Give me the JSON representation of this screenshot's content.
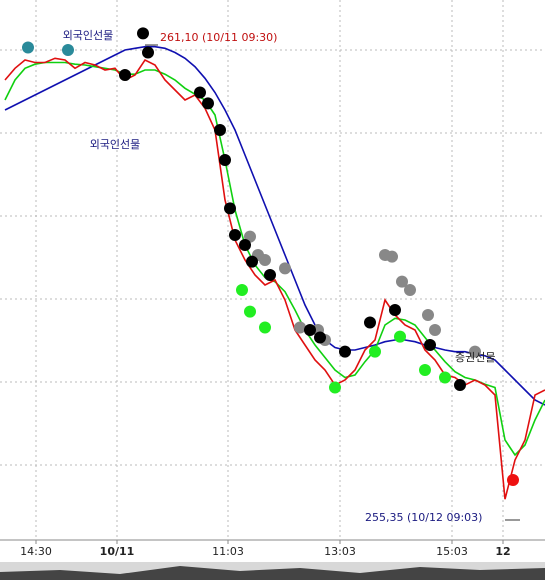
{
  "chart_data": {
    "type": "line",
    "x": [
      0,
      1,
      2,
      3,
      4,
      5,
      6,
      7,
      8,
      9,
      10,
      11,
      12,
      13,
      14,
      15,
      16,
      17,
      18,
      19,
      20,
      21,
      22,
      23,
      24,
      25,
      26,
      27,
      28,
      29,
      30,
      31,
      32,
      33,
      34,
      35,
      36,
      37,
      38,
      39,
      40,
      41,
      42,
      43,
      44,
      45,
      46,
      47,
      48,
      49,
      50,
      51,
      52,
      53,
      54
    ],
    "xlim": [
      -0.5,
      54
    ],
    "xticks": [
      {
        "value": 3.1,
        "label": "14:30"
      },
      {
        "value": 11.2,
        "label": "10/11"
      },
      {
        "value": 22.3,
        "label": "11:03"
      },
      {
        "value": 33.5,
        "label": "13:03"
      },
      {
        "value": 44.7,
        "label": "15:03"
      },
      {
        "value": 49.8,
        "label": "12"
      }
    ],
    "ylim": [
      255.08,
      261.56
    ],
    "grid": true,
    "series": [
      {
        "color": "#1010b0",
        "values": [
          260.24,
          260.3,
          260.36,
          260.42,
          260.48,
          260.54,
          260.6,
          260.66,
          260.72,
          260.78,
          260.84,
          260.9,
          260.96,
          260.98,
          261.0,
          261.0,
          260.98,
          260.93,
          260.86,
          260.76,
          260.62,
          260.45,
          260.24,
          260.0,
          259.7,
          259.4,
          259.1,
          258.8,
          258.5,
          258.2,
          257.9,
          257.66,
          257.48,
          257.39,
          257.36,
          257.36,
          257.39,
          257.42,
          257.46,
          257.48,
          257.48,
          257.46,
          257.42,
          257.39,
          257.36,
          257.34,
          257.34,
          257.31,
          257.29,
          257.24,
          257.12,
          257.0,
          256.88,
          256.76,
          256.7
        ]
      },
      {
        "color": "#10d010",
        "values": [
          260.36,
          260.6,
          260.74,
          260.79,
          260.81,
          260.81,
          260.81,
          260.79,
          260.78,
          260.76,
          260.74,
          260.72,
          260.67,
          260.67,
          260.72,
          260.72,
          260.67,
          260.6,
          260.5,
          260.43,
          260.36,
          260.18,
          259.64,
          259.04,
          258.62,
          258.38,
          258.23,
          258.18,
          258.06,
          257.84,
          257.6,
          257.42,
          257.27,
          257.12,
          257.03,
          257.06,
          257.22,
          257.36,
          257.66,
          257.74,
          257.72,
          257.66,
          257.51,
          257.36,
          257.22,
          257.1,
          257.03,
          257.0,
          256.95,
          256.91,
          256.28,
          256.1,
          256.22,
          256.52,
          256.76
        ]
      },
      {
        "color": "#e01010",
        "values": [
          260.6,
          260.74,
          260.84,
          260.81,
          260.81,
          260.86,
          260.84,
          260.74,
          260.81,
          260.78,
          260.72,
          260.74,
          260.6,
          260.66,
          260.84,
          260.78,
          260.6,
          260.48,
          260.36,
          260.42,
          260.26,
          260.0,
          259.16,
          258.68,
          258.44,
          258.26,
          258.14,
          258.2,
          257.96,
          257.6,
          257.42,
          257.24,
          257.12,
          256.94,
          257.0,
          257.12,
          257.36,
          257.48,
          257.96,
          257.78,
          257.66,
          257.6,
          257.36,
          257.24,
          257.06,
          257.03,
          256.94,
          257.0,
          256.94,
          256.82,
          255.57,
          256.04,
          256.28,
          256.82,
          256.88
        ]
      },
      {
        "color": "#888888",
        "marker": "dot",
        "x": [
          24.5,
          25.3,
          26,
          28,
          29.5,
          31.3,
          32,
          38,
          38.7,
          39.7,
          40.5,
          42.3,
          43,
          47
        ],
        "values": [
          258.72,
          258.5,
          258.44,
          258.34,
          257.63,
          257.6,
          257.48,
          258.5,
          258.48,
          258.18,
          258.08,
          257.78,
          257.6,
          257.34
        ]
      },
      {
        "color": "#000000",
        "marker": "dot",
        "x": [
          13.8,
          14.3,
          12,
          19.5,
          20.3,
          21.5,
          22,
          22.5,
          23,
          24,
          24.7,
          26.5,
          30.5,
          31.5,
          34,
          36.5,
          39,
          42.5,
          45.5
        ],
        "values": [
          261.16,
          260.93,
          260.66,
          260.45,
          260.32,
          260.0,
          259.64,
          259.06,
          258.74,
          258.62,
          258.42,
          258.26,
          257.6,
          257.51,
          257.34,
          257.69,
          257.84,
          257.42,
          256.94
        ]
      },
      {
        "color": "#22ee22",
        "marker": "dot",
        "x": [
          23.7,
          24.5,
          26,
          33,
          37,
          39.5,
          42,
          44
        ],
        "values": [
          258.08,
          257.82,
          257.63,
          256.91,
          257.34,
          257.52,
          257.12,
          257.03
        ]
      },
      {
        "color": "#2a8a9a",
        "marker": "dot",
        "x": [
          2.3,
          6.3
        ],
        "values": [
          260.99,
          260.96
        ]
      },
      {
        "color": "#ee1111",
        "marker": "dot",
        "x": [
          50.8
        ],
        "values": [
          255.8
        ]
      }
    ],
    "annotations": [
      "외국인선물",
      "외국인선물",
      "261,10 (10/11 09:30)",
      "255,35 (10/12 09:03)",
      "증권선물"
    ]
  }
}
